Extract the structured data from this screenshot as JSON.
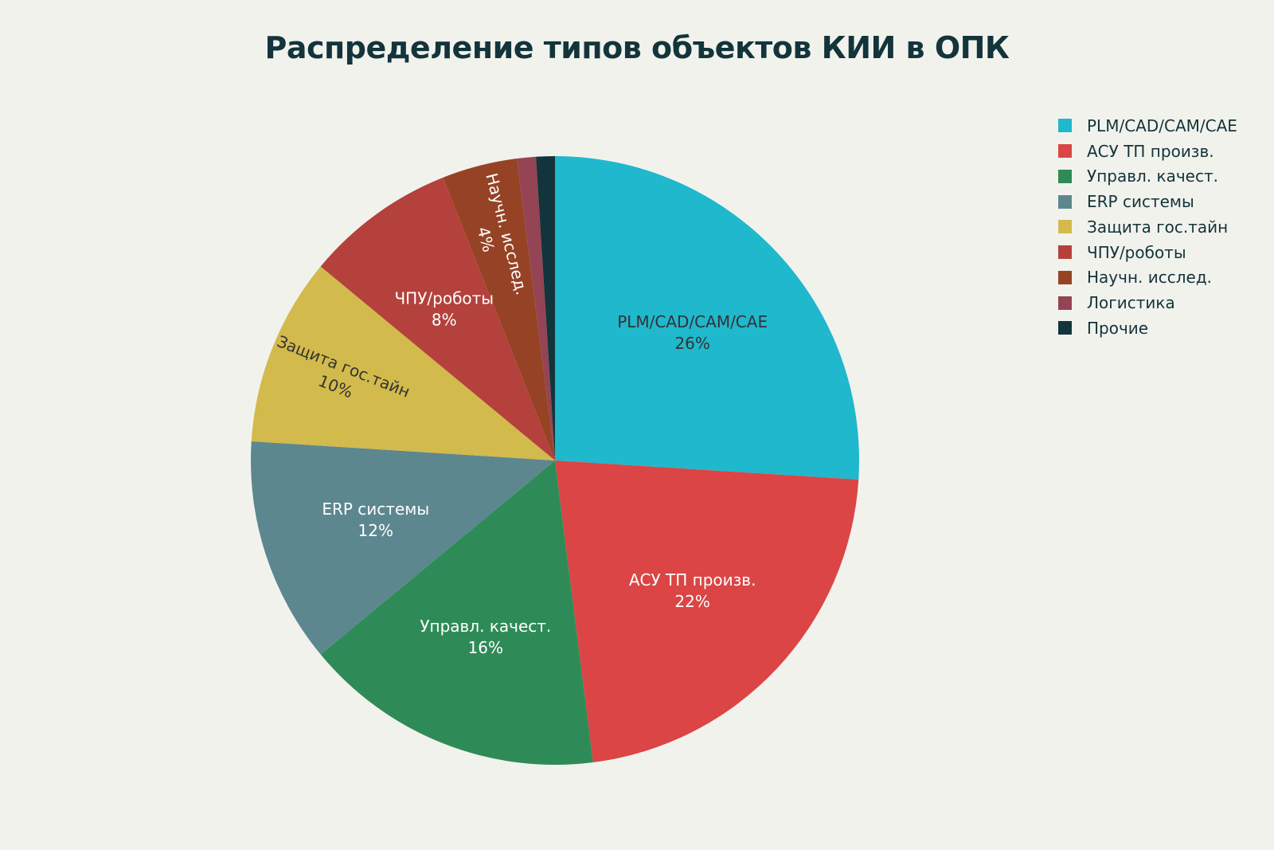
{
  "title": "Распределение типов объектов КИИ в ОПК",
  "chart_data": {
    "type": "pie",
    "title": "Распределение типов объектов КИИ в ОПК",
    "legend_position": "top-right",
    "start_angle_deg": 90,
    "direction": "clockwise",
    "slices": [
      {
        "label": "PLM/CAD/CAM/CAE",
        "percent_label": "26%",
        "value": 26,
        "color": "#1fb8cd",
        "text_color": "#333333",
        "rotate_label": false
      },
      {
        "label": "АСУ ТП произв.",
        "percent_label": "22%",
        "value": 22,
        "color": "#db4545",
        "text_color": "#ffffff",
        "rotate_label": false
      },
      {
        "label": "Управл. качест.",
        "percent_label": "16%",
        "value": 16,
        "color": "#2e8b57",
        "text_color": "#ffffff",
        "rotate_label": false
      },
      {
        "label": "ERP системы",
        "percent_label": "12%",
        "value": 12,
        "color": "#5d878f",
        "text_color": "#ffffff",
        "rotate_label": false
      },
      {
        "label": "Защита гос.тайн",
        "percent_label": "10%",
        "value": 10,
        "color": "#d2ba4c",
        "text_color": "#333333",
        "rotate_label": true
      },
      {
        "label": "ЧПУ/роботы",
        "percent_label": "8%",
        "value": 8,
        "color": "#b4413c",
        "text_color": "#ffffff",
        "rotate_label": false
      },
      {
        "label": "Научн. исслед.",
        "percent_label": "4%",
        "value": 4,
        "color": "#964325",
        "text_color": "#ffffff",
        "rotate_label": true
      },
      {
        "label": "Логистика",
        "percent_label": "",
        "value": 1,
        "color": "#944454",
        "text_color": "#ffffff",
        "rotate_label": false
      },
      {
        "label": "Прочие",
        "percent_label": "",
        "value": 1,
        "color": "#13343b",
        "text_color": "#ffffff",
        "rotate_label": false
      }
    ]
  }
}
